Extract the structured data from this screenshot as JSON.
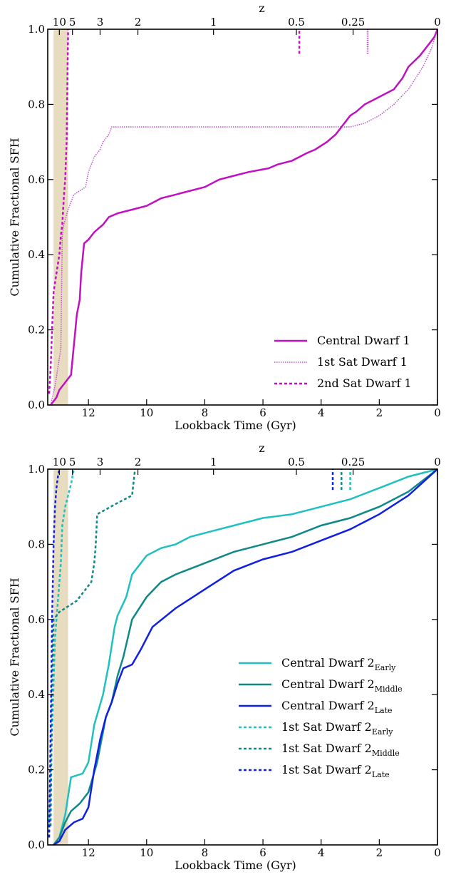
{
  "chart_data": [
    {
      "type": "line",
      "xlabel": "Lookback Time (Gyr)",
      "ylabel": "Cumulative Fractional SFH",
      "top_axis_label": "z",
      "xlim": [
        13.4,
        0
      ],
      "ylim": [
        0,
        1
      ],
      "x_ticks": [
        "12",
        "10",
        "8",
        "6",
        "4",
        "2",
        "0"
      ],
      "y_ticks": [
        "0.0",
        "0.2",
        "0.4",
        "0.6",
        "0.8",
        "1.0"
      ],
      "z_ticks": [
        {
          "label": "10",
          "t": 13.0
        },
        {
          "label": "5",
          "t": 12.55
        },
        {
          "label": "3",
          "t": 11.6
        },
        {
          "label": "2",
          "t": 10.3
        },
        {
          "label": "1",
          "t": 7.7
        },
        {
          "label": "0.5",
          "t": 4.85
        },
        {
          "label": "0.25",
          "t": 2.9
        },
        {
          "label": "0",
          "t": 0.0
        }
      ],
      "shaded_band": {
        "from": 13.2,
        "to": 12.7,
        "color": "#e8dcc0"
      },
      "legend_position": "lower-right",
      "series": [
        {
          "name": "Central Dwarf 1",
          "color": "#c010c0",
          "style": "solid",
          "width": 2.5,
          "points": [
            [
              13.3,
              0.0
            ],
            [
              13.1,
              0.02
            ],
            [
              13.0,
              0.04
            ],
            [
              12.8,
              0.06
            ],
            [
              12.6,
              0.08
            ],
            [
              12.4,
              0.24
            ],
            [
              12.3,
              0.28
            ],
            [
              12.25,
              0.35
            ],
            [
              12.15,
              0.43
            ],
            [
              12.0,
              0.44
            ],
            [
              11.8,
              0.46
            ],
            [
              11.5,
              0.48
            ],
            [
              11.3,
              0.5
            ],
            [
              11.0,
              0.51
            ],
            [
              10.5,
              0.52
            ],
            [
              10.0,
              0.53
            ],
            [
              9.5,
              0.55
            ],
            [
              9.0,
              0.56
            ],
            [
              8.0,
              0.58
            ],
            [
              7.5,
              0.6
            ],
            [
              7.0,
              0.61
            ],
            [
              6.5,
              0.62
            ],
            [
              5.8,
              0.63
            ],
            [
              5.5,
              0.64
            ],
            [
              5.0,
              0.65
            ],
            [
              4.5,
              0.67
            ],
            [
              4.2,
              0.68
            ],
            [
              3.8,
              0.7
            ],
            [
              3.5,
              0.72
            ],
            [
              3.0,
              0.77
            ],
            [
              2.8,
              0.78
            ],
            [
              2.5,
              0.8
            ],
            [
              2.0,
              0.82
            ],
            [
              1.5,
              0.84
            ],
            [
              1.2,
              0.87
            ],
            [
              1.0,
              0.9
            ],
            [
              0.6,
              0.93
            ],
            [
              0.3,
              0.96
            ],
            [
              0.1,
              0.98
            ],
            [
              0.0,
              1.0
            ]
          ]
        },
        {
          "name": "1st Sat Dwarf 1",
          "color": "#c050d0",
          "style": "dotted",
          "width": 1.5,
          "points": [
            [
              13.3,
              0.0
            ],
            [
              13.15,
              0.05
            ],
            [
              13.05,
              0.1
            ],
            [
              12.95,
              0.15
            ],
            [
              12.9,
              0.45
            ],
            [
              12.85,
              0.48
            ],
            [
              12.7,
              0.52
            ],
            [
              12.5,
              0.56
            ],
            [
              12.1,
              0.58
            ],
            [
              12.0,
              0.62
            ],
            [
              11.8,
              0.66
            ],
            [
              11.6,
              0.68
            ],
            [
              11.5,
              0.7
            ],
            [
              11.3,
              0.72
            ],
            [
              11.2,
              0.74
            ],
            [
              10.0,
              0.74
            ],
            [
              8.0,
              0.74
            ],
            [
              6.0,
              0.74
            ],
            [
              4.5,
              0.74
            ],
            [
              3.5,
              0.74
            ],
            [
              3.0,
              0.74
            ],
            [
              2.5,
              0.75
            ],
            [
              2.0,
              0.77
            ],
            [
              1.5,
              0.8
            ],
            [
              1.0,
              0.84
            ],
            [
              0.5,
              0.9
            ],
            [
              0.2,
              0.95
            ],
            [
              0.0,
              1.0
            ]
          ]
        },
        {
          "name": "2nd Sat Dwarf 1",
          "color": "#c010c0",
          "style": "dashed",
          "width": 2.5,
          "points": [
            [
              13.35,
              0.03
            ],
            [
              13.3,
              0.1
            ],
            [
              13.25,
              0.2
            ],
            [
              13.2,
              0.3
            ],
            [
              13.1,
              0.35
            ],
            [
              13.0,
              0.4
            ],
            [
              12.95,
              0.45
            ],
            [
              12.9,
              0.48
            ],
            [
              12.85,
              0.55
            ],
            [
              12.8,
              0.6
            ],
            [
              12.75,
              0.7
            ],
            [
              12.7,
              1.0
            ]
          ]
        }
      ],
      "truncation_markers": [
        {
          "t": 4.75,
          "y_from": 0.95,
          "y_to": 1.0,
          "color": "#c010c0",
          "style": "dashed"
        },
        {
          "t": 2.4,
          "y_from": 0.95,
          "y_to": 1.0,
          "color": "#c050d0",
          "style": "dotted"
        }
      ]
    },
    {
      "type": "line",
      "xlabel": "Lookback Time (Gyr)",
      "ylabel": "Cumulative Fractional SFH",
      "top_axis_label": "z",
      "xlim": [
        13.4,
        0
      ],
      "ylim": [
        0,
        1
      ],
      "x_ticks": [
        "12",
        "10",
        "8",
        "6",
        "4",
        "2",
        "0"
      ],
      "y_ticks": [
        "0.0",
        "0.2",
        "0.4",
        "0.6",
        "0.8",
        "1.0"
      ],
      "z_ticks": [
        {
          "label": "10",
          "t": 13.0
        },
        {
          "label": "5",
          "t": 12.55
        },
        {
          "label": "3",
          "t": 11.6
        },
        {
          "label": "2",
          "t": 10.3
        },
        {
          "label": "1",
          "t": 7.7
        },
        {
          "label": "0.5",
          "t": 4.85
        },
        {
          "label": "0.25",
          "t": 2.9
        },
        {
          "label": "0",
          "t": 0.0
        }
      ],
      "shaded_band": {
        "from": 13.2,
        "to": 12.7,
        "color": "#e8dcc0"
      },
      "legend_position": "lower-right",
      "series": [
        {
          "name": "Central Dwarf 2",
          "sub": "Early",
          "color": "#20c0c0",
          "style": "solid",
          "width": 2.5,
          "points": [
            [
              13.2,
              0.0
            ],
            [
              13.0,
              0.02
            ],
            [
              12.8,
              0.08
            ],
            [
              12.6,
              0.18
            ],
            [
              12.2,
              0.19
            ],
            [
              12.0,
              0.22
            ],
            [
              11.8,
              0.32
            ],
            [
              11.5,
              0.4
            ],
            [
              11.3,
              0.48
            ],
            [
              11.1,
              0.58
            ],
            [
              11.0,
              0.61
            ],
            [
              10.7,
              0.66
            ],
            [
              10.5,
              0.72
            ],
            [
              10.2,
              0.75
            ],
            [
              10.0,
              0.77
            ],
            [
              9.5,
              0.79
            ],
            [
              9.0,
              0.8
            ],
            [
              8.5,
              0.82
            ],
            [
              8.0,
              0.83
            ],
            [
              7.5,
              0.84
            ],
            [
              7.0,
              0.85
            ],
            [
              6.0,
              0.87
            ],
            [
              5.0,
              0.88
            ],
            [
              4.0,
              0.9
            ],
            [
              3.0,
              0.92
            ],
            [
              2.0,
              0.95
            ],
            [
              1.0,
              0.98
            ],
            [
              0.0,
              1.0
            ]
          ]
        },
        {
          "name": "Central Dwarf 2",
          "sub": "Middle",
          "color": "#108888",
          "style": "solid",
          "width": 2.5,
          "points": [
            [
              13.2,
              0.0
            ],
            [
              13.0,
              0.02
            ],
            [
              12.8,
              0.06
            ],
            [
              12.6,
              0.09
            ],
            [
              12.3,
              0.11
            ],
            [
              12.0,
              0.14
            ],
            [
              11.7,
              0.22
            ],
            [
              11.4,
              0.34
            ],
            [
              11.2,
              0.38
            ],
            [
              11.0,
              0.45
            ],
            [
              10.8,
              0.5
            ],
            [
              10.5,
              0.6
            ],
            [
              10.0,
              0.66
            ],
            [
              9.5,
              0.7
            ],
            [
              9.0,
              0.72
            ],
            [
              8.0,
              0.75
            ],
            [
              7.0,
              0.78
            ],
            [
              6.0,
              0.8
            ],
            [
              5.0,
              0.82
            ],
            [
              4.0,
              0.85
            ],
            [
              3.0,
              0.87
            ],
            [
              2.0,
              0.9
            ],
            [
              1.0,
              0.94
            ],
            [
              0.0,
              1.0
            ]
          ]
        },
        {
          "name": "Central Dwarf 2",
          "sub": "Late",
          "color": "#1020e0",
          "style": "solid",
          "width": 2.5,
          "points": [
            [
              13.2,
              0.0
            ],
            [
              13.0,
              0.01
            ],
            [
              12.8,
              0.04
            ],
            [
              12.5,
              0.06
            ],
            [
              12.2,
              0.07
            ],
            [
              12.0,
              0.1
            ],
            [
              11.8,
              0.2
            ],
            [
              11.6,
              0.28
            ],
            [
              11.4,
              0.34
            ],
            [
              11.2,
              0.38
            ],
            [
              11.0,
              0.43
            ],
            [
              10.8,
              0.47
            ],
            [
              10.5,
              0.48
            ],
            [
              10.2,
              0.52
            ],
            [
              9.8,
              0.58
            ],
            [
              9.0,
              0.63
            ],
            [
              8.0,
              0.68
            ],
            [
              7.0,
              0.73
            ],
            [
              6.0,
              0.76
            ],
            [
              5.0,
              0.78
            ],
            [
              4.0,
              0.81
            ],
            [
              3.0,
              0.84
            ],
            [
              2.0,
              0.88
            ],
            [
              1.0,
              0.93
            ],
            [
              0.0,
              1.0
            ]
          ]
        },
        {
          "name": "1st Sat Dwarf 2",
          "sub": "Early",
          "color": "#20c0c0",
          "style": "dashed",
          "width": 2.5,
          "points": [
            [
              13.35,
              0.05
            ],
            [
              13.25,
              0.3
            ],
            [
              13.15,
              0.55
            ],
            [
              13.05,
              0.65
            ],
            [
              12.95,
              0.75
            ],
            [
              12.9,
              0.85
            ],
            [
              12.8,
              0.9
            ],
            [
              12.7,
              0.93
            ],
            [
              12.6,
              0.96
            ],
            [
              12.5,
              1.0
            ]
          ]
        },
        {
          "name": "1st Sat Dwarf 2",
          "sub": "Middle",
          "color": "#108888",
          "style": "dashed",
          "width": 2.5,
          "points": [
            [
              13.3,
              0.05
            ],
            [
              13.25,
              0.4
            ],
            [
              13.2,
              0.6
            ],
            [
              13.0,
              0.62
            ],
            [
              12.8,
              0.63
            ],
            [
              12.4,
              0.65
            ],
            [
              12.1,
              0.68
            ],
            [
              11.9,
              0.7
            ],
            [
              11.8,
              0.75
            ],
            [
              11.75,
              0.8
            ],
            [
              11.7,
              0.88
            ],
            [
              11.0,
              0.91
            ],
            [
              10.5,
              0.93
            ],
            [
              10.4,
              1.0
            ]
          ]
        },
        {
          "name": "1st Sat Dwarf 2",
          "sub": "Late",
          "color": "#1020e0",
          "style": "dashed",
          "width": 2.5,
          "points": [
            [
              13.35,
              0.02
            ],
            [
              13.3,
              0.3
            ],
            [
              13.25,
              0.6
            ],
            [
              13.2,
              0.8
            ],
            [
              13.15,
              0.9
            ],
            [
              13.1,
              0.95
            ],
            [
              13.05,
              0.98
            ],
            [
              13.0,
              1.0
            ]
          ]
        }
      ],
      "truncation_markers": [
        {
          "t": 3.6,
          "y_from": 0.96,
          "y_to": 1.0,
          "color": "#1020e0",
          "style": "dashed"
        },
        {
          "t": 3.3,
          "y_from": 0.96,
          "y_to": 1.0,
          "color": "#108888",
          "style": "dashed"
        },
        {
          "t": 3.0,
          "y_from": 0.96,
          "y_to": 1.0,
          "color": "#20c0c0",
          "style": "dashed"
        }
      ]
    }
  ]
}
